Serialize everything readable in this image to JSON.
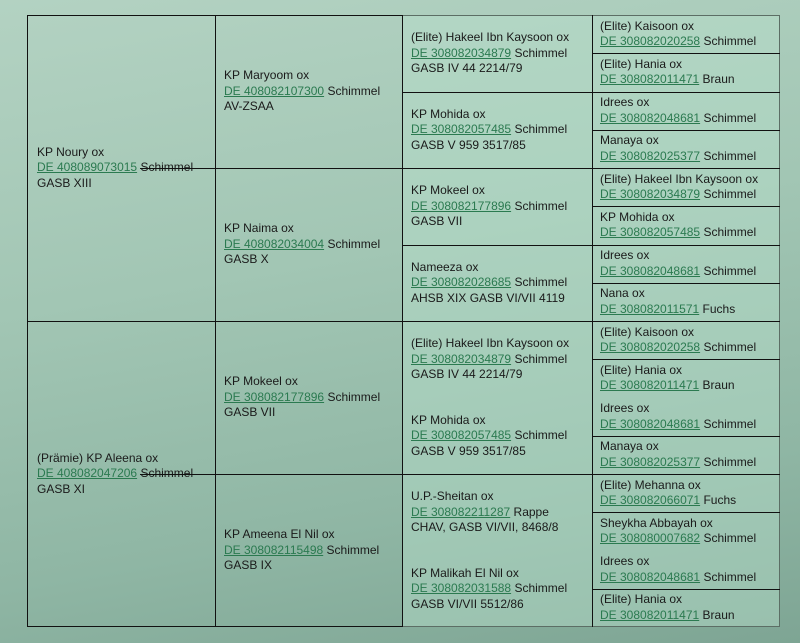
{
  "pedigree": {
    "gen1": [
      {
        "name": "KP Noury ox",
        "reg": "DE 408089073015",
        "color": "Schimmel",
        "extra": "GASB XIII"
      },
      {
        "name": "(Prämie) KP Aleena ox",
        "reg": "DE 408082047206",
        "color": "Schimmel",
        "extra": "GASB XI"
      }
    ],
    "gen2": [
      {
        "name": "KP Maryoom ox",
        "reg": "DE 408082107300",
        "color": "Schimmel",
        "extra": "AV-ZSAA"
      },
      {
        "name": "KP Naima ox",
        "reg": "DE 408082034004",
        "color": "Schimmel",
        "extra": "GASB X"
      },
      {
        "name": "KP Mokeel ox",
        "reg": "DE 308082177896",
        "color": "Schimmel",
        "extra": "GASB VII"
      },
      {
        "name": "KP Ameena El Nil ox",
        "reg": "DE 308082115498",
        "color": "Schimmel",
        "extra": "GASB IX"
      }
    ],
    "gen3": [
      {
        "name": "(Elite) Hakeel Ibn Kaysoon ox",
        "reg": "DE 308082034879",
        "color": "Schimmel",
        "extra": "GASB IV 44 2214/79"
      },
      {
        "name": "KP Mohida ox",
        "reg": "DE 308082057485",
        "color": "Schimmel",
        "extra": "GASB V 959 3517/85"
      },
      {
        "name": "KP Mokeel ox",
        "reg": "DE 308082177896",
        "color": "Schimmel",
        "extra": "GASB VII"
      },
      {
        "name": "Nameeza ox",
        "reg": "DE 308082028685",
        "color": "Schimmel",
        "extra": "AHSB XIX GASB VI/VII 4119"
      },
      {
        "name": "(Elite) Hakeel Ibn Kaysoon ox",
        "reg": "DE 308082034879",
        "color": "Schimmel",
        "extra": "GASB IV 44 2214/79"
      },
      {
        "name": "KP Mohida ox",
        "reg": "DE 308082057485",
        "color": "Schimmel",
        "extra": "GASB V 959 3517/85"
      },
      {
        "name": "U.P.-Sheitan ox",
        "reg": "DE 308082211287",
        "color": "Rappe",
        "extra": "CHAV, GASB VI/VII, 8468/8"
      },
      {
        "name": "KP Malikah El Nil ox",
        "reg": "DE 308082031588",
        "color": "Schimmel",
        "extra": "GASB VI/VII 5512/86"
      }
    ],
    "gen4": [
      {
        "name": "(Elite) Kaisoon ox",
        "reg": "DE 308082020258",
        "color": "Schimmel"
      },
      {
        "name": "(Elite) Hania ox",
        "reg": "DE 308082011471",
        "color": "Braun"
      },
      {
        "name": "Idrees ox",
        "reg": "DE 308082048681",
        "color": "Schimmel"
      },
      {
        "name": "Manaya ox",
        "reg": "DE 308082025377",
        "color": "Schimmel"
      },
      {
        "name": "(Elite) Hakeel Ibn Kaysoon ox",
        "reg": "DE 308082034879",
        "color": "Schimmel"
      },
      {
        "name": "KP Mohida ox",
        "reg": "DE 308082057485",
        "color": "Schimmel"
      },
      {
        "name": "Idrees ox",
        "reg": "DE 308082048681",
        "color": "Schimmel"
      },
      {
        "name": "Nana ox",
        "reg": "DE 308082011571",
        "color": "Fuchs"
      },
      {
        "name": "(Elite) Kaisoon ox",
        "reg": "DE 308082020258",
        "color": "Schimmel"
      },
      {
        "name": "(Elite) Hania ox",
        "reg": "DE 308082011471",
        "color": "Braun"
      },
      {
        "name": "Idrees ox",
        "reg": "DE 308082048681",
        "color": "Schimmel"
      },
      {
        "name": "Manaya ox",
        "reg": "DE 308082025377",
        "color": "Schimmel"
      },
      {
        "name": "(Elite) Mehanna ox",
        "reg": "DE 308082066071",
        "color": "Fuchs"
      },
      {
        "name": "Sheykha Abbayah ox",
        "reg": "DE 308080007682",
        "color": "Schimmel"
      },
      {
        "name": "Idrees ox",
        "reg": "DE 308082048681",
        "color": "Schimmel"
      },
      {
        "name": "(Elite) Hania ox",
        "reg": "DE 308082011471",
        "color": "Braun"
      }
    ]
  }
}
